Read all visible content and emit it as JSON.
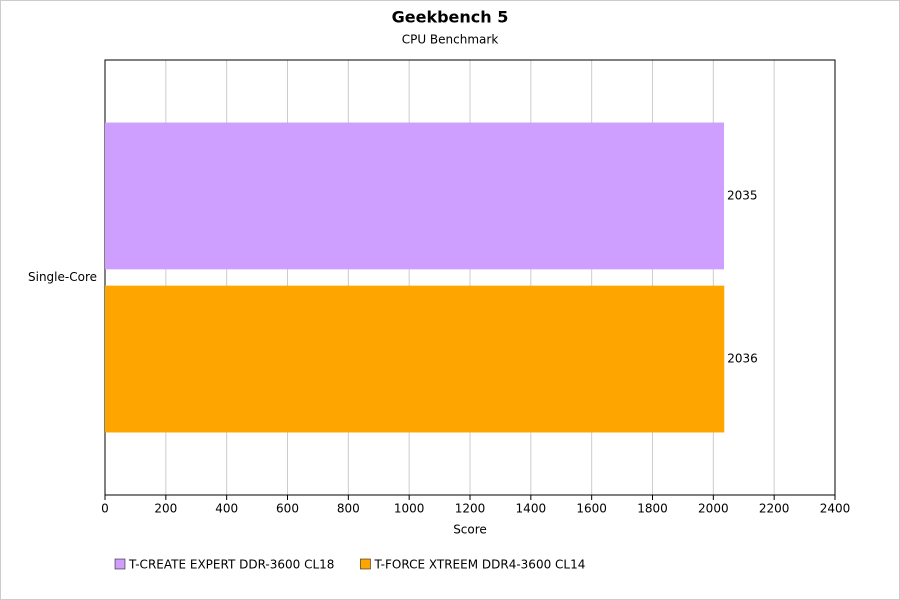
{
  "chart_data": {
    "type": "bar",
    "orientation": "horizontal",
    "title": "Geekbench 5",
    "subtitle": "CPU Benchmark",
    "x_label": "Score",
    "categories": [
      "Single-Core"
    ],
    "series": [
      {
        "name": "T-CREATE EXPERT DDR-3600 CL18",
        "color": "#cf9fff",
        "values": [
          2035
        ]
      },
      {
        "name": "T-FORCE XTREEM DDR4-3600 CL14",
        "color": "#ffa500",
        "values": [
          2036
        ]
      }
    ],
    "xlim": [
      0,
      2400
    ],
    "xticks": [
      0,
      200,
      400,
      600,
      800,
      1000,
      1200,
      1400,
      1600,
      1800,
      2000,
      2200,
      2400
    ],
    "grid": true,
    "legend": "bottom"
  }
}
